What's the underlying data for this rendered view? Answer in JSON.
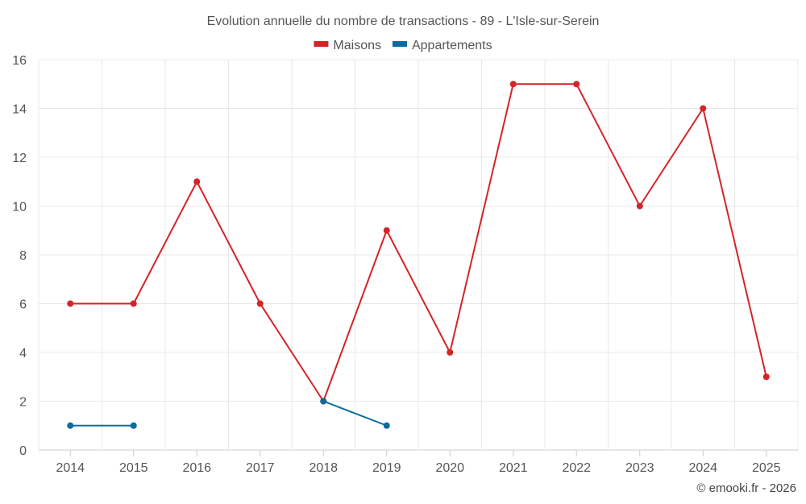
{
  "chart_data": {
    "type": "line",
    "title": "Evolution annuelle du nombre de transactions - 89 - L'Isle-sur-Serein",
    "categories": [
      "2014",
      "2015",
      "2016",
      "2017",
      "2018",
      "2019",
      "2020",
      "2021",
      "2022",
      "2023",
      "2024",
      "2025"
    ],
    "series": [
      {
        "name": "Maisons",
        "color": "#d32528",
        "values": [
          6,
          6,
          11,
          6,
          2,
          9,
          4,
          15,
          15,
          10,
          14,
          3
        ]
      },
      {
        "name": "Appartements",
        "color": "#0b6b9e",
        "values": [
          1,
          1,
          null,
          null,
          2,
          1,
          null,
          null,
          null,
          null,
          null,
          null
        ]
      }
    ],
    "ylim": [
      0,
      16
    ],
    "yticks": [
      0,
      2,
      4,
      6,
      8,
      10,
      12,
      14,
      16
    ],
    "xlabel": "",
    "ylabel": "",
    "grid": true,
    "legend": "top-center"
  },
  "credit": "© emooki.fr - 2026"
}
